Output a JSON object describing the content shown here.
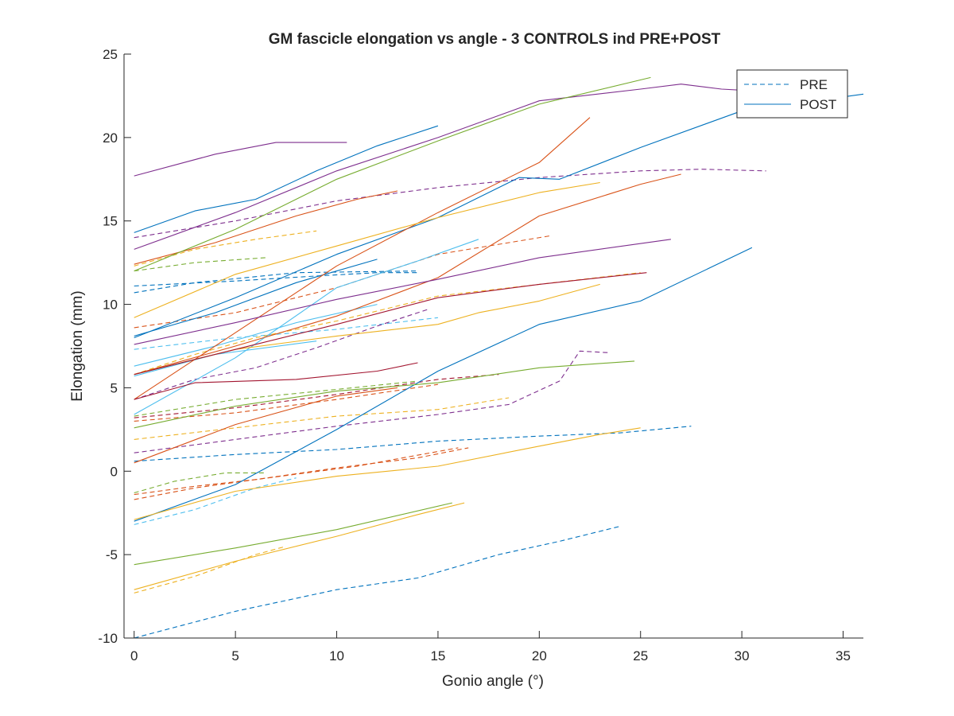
{
  "chart_data": {
    "type": "line",
    "title": "GM fascicle elongation vs angle - 3 CONTROLS ind PRE+POST",
    "xlabel": "Gonio angle (°)",
    "ylabel": "Elongation (mm)",
    "xlim": [
      -0.5,
      36
    ],
    "ylim": [
      -10,
      25
    ],
    "xticks": [
      0,
      5,
      10,
      15,
      20,
      25,
      30,
      35
    ],
    "yticks": [
      -10,
      -5,
      0,
      5,
      10,
      15,
      20,
      25
    ],
    "xtick_labels": [
      "0",
      "5",
      "10",
      "15",
      "20",
      "25",
      "30",
      "35"
    ],
    "ytick_labels": [
      "-10",
      "-5",
      "0",
      "5",
      "10",
      "15",
      "20",
      "25"
    ],
    "grid": false,
    "legend": {
      "position": "top-right",
      "entries": [
        {
          "label": "PRE",
          "style": "dashed",
          "color": "#0072BD"
        },
        {
          "label": "POST",
          "style": "solid",
          "color": "#0072BD"
        }
      ]
    },
    "colors": [
      "#0072BD",
      "#D95319",
      "#EDB120",
      "#7E2F8E",
      "#77AC30",
      "#4DBEEE",
      "#A2142F"
    ],
    "series": [
      {
        "group": "PRE",
        "color": "#0072BD",
        "points": [
          [
            0,
            -10.0
          ],
          [
            5,
            -8.4
          ],
          [
            10,
            -7.1
          ],
          [
            14,
            -6.4
          ],
          [
            18,
            -5.0
          ],
          [
            21,
            -4.2
          ],
          [
            24,
            -3.3
          ]
        ]
      },
      {
        "group": "PRE",
        "color": "#0072BD",
        "points": [
          [
            0,
            0.6
          ],
          [
            5,
            1.0
          ],
          [
            10,
            1.3
          ],
          [
            15,
            1.8
          ],
          [
            20,
            2.1
          ],
          [
            24,
            2.3
          ],
          [
            27.5,
            2.7
          ]
        ]
      },
      {
        "group": "PRE",
        "color": "#0072BD",
        "points": [
          [
            0,
            10.7
          ],
          [
            3,
            11.3
          ],
          [
            8,
            11.9
          ],
          [
            14,
            12.0
          ]
        ]
      },
      {
        "group": "PRE",
        "color": "#0072BD",
        "points": [
          [
            0,
            11.1
          ],
          [
            5,
            11.4
          ],
          [
            9,
            11.7
          ],
          [
            12,
            11.9
          ],
          [
            14,
            11.9
          ]
        ]
      },
      {
        "group": "PRE",
        "color": "#4DBEEE",
        "points": [
          [
            0,
            -3.2
          ],
          [
            3,
            -2.3
          ],
          [
            6,
            -1.0
          ],
          [
            8,
            -0.4
          ]
        ]
      },
      {
        "group": "PRE",
        "color": "#4DBEEE",
        "points": [
          [
            0,
            7.3
          ],
          [
            5,
            8.0
          ],
          [
            10,
            8.5
          ],
          [
            15,
            9.2
          ]
        ]
      },
      {
        "group": "PRE",
        "color": "#D95319",
        "points": [
          [
            0,
            -1.7
          ],
          [
            3,
            -1.0
          ],
          [
            6,
            -0.5
          ],
          [
            11,
            0.3
          ],
          [
            16,
            1.4
          ]
        ]
      },
      {
        "group": "PRE",
        "color": "#D95319",
        "points": [
          [
            0,
            8.6
          ],
          [
            5,
            9.5
          ],
          [
            10,
            11.0
          ],
          [
            15,
            13.0
          ],
          [
            20.5,
            14.1
          ]
        ]
      },
      {
        "group": "PRE",
        "color": "#D95319",
        "points": [
          [
            0,
            3.0
          ],
          [
            5,
            3.5
          ],
          [
            10,
            4.3
          ],
          [
            15,
            5.2
          ]
        ]
      },
      {
        "group": "PRE",
        "color": "#D95319",
        "points": [
          [
            0,
            -1.4
          ],
          [
            3,
            -0.9
          ],
          [
            6,
            -0.5
          ],
          [
            10,
            0.2
          ],
          [
            14,
            0.8
          ],
          [
            16.5,
            1.4
          ]
        ]
      },
      {
        "group": "PRE",
        "color": "#EDB120",
        "points": [
          [
            0,
            1.9
          ],
          [
            5,
            2.6
          ],
          [
            10,
            3.3
          ],
          [
            15,
            3.7
          ],
          [
            18.5,
            4.4
          ]
        ]
      },
      {
        "group": "PRE",
        "color": "#EDB120",
        "points": [
          [
            0,
            12.3
          ],
          [
            3,
            13.3
          ],
          [
            6,
            13.9
          ],
          [
            9,
            14.4
          ]
        ]
      },
      {
        "group": "PRE",
        "color": "#EDB120",
        "points": [
          [
            0,
            5.8
          ],
          [
            3,
            7.0
          ],
          [
            6,
            8.0
          ],
          [
            10,
            9.0
          ],
          [
            15,
            10.5
          ],
          [
            20,
            11.2
          ],
          [
            25,
            11.9
          ]
        ]
      },
      {
        "group": "PRE",
        "color": "#EDB120",
        "points": [
          [
            0,
            -7.3
          ],
          [
            3,
            -6.3
          ],
          [
            6,
            -5.0
          ],
          [
            7.5,
            -4.5
          ]
        ]
      },
      {
        "group": "PRE",
        "color": "#7E2F8E",
        "points": [
          [
            0,
            14.0
          ],
          [
            5,
            15.0
          ],
          [
            10,
            16.2
          ],
          [
            15,
            17.0
          ],
          [
            20,
            17.6
          ],
          [
            25,
            18.0
          ],
          [
            28,
            18.1
          ],
          [
            31.2,
            18.0
          ]
        ]
      },
      {
        "group": "PRE",
        "color": "#7E2F8E",
        "points": [
          [
            0,
            1.1
          ],
          [
            5,
            1.9
          ],
          [
            10,
            2.7
          ],
          [
            15,
            3.4
          ],
          [
            18.5,
            4.0
          ],
          [
            21,
            5.4
          ],
          [
            22,
            7.2
          ],
          [
            23.5,
            7.1
          ]
        ]
      },
      {
        "group": "PRE",
        "color": "#7E2F8E",
        "points": [
          [
            0,
            4.3
          ],
          [
            3,
            5.5
          ],
          [
            6,
            6.2
          ],
          [
            9,
            7.4
          ],
          [
            12,
            8.7
          ],
          [
            14.5,
            9.7
          ]
        ]
      },
      {
        "group": "PRE",
        "color": "#77AC30",
        "points": [
          [
            0,
            12.0
          ],
          [
            3,
            12.5
          ],
          [
            6.5,
            12.8
          ]
        ]
      },
      {
        "group": "PRE",
        "color": "#77AC30",
        "points": [
          [
            0,
            3.3
          ],
          [
            5,
            4.3
          ],
          [
            10,
            4.9
          ],
          [
            14,
            5.4
          ]
        ]
      },
      {
        "group": "PRE",
        "color": "#77AC30",
        "points": [
          [
            0,
            -1.3
          ],
          [
            2,
            -0.6
          ],
          [
            4.5,
            -0.1
          ],
          [
            6.5,
            -0.1
          ]
        ]
      },
      {
        "group": "PRE",
        "color": "#A2142F",
        "points": [
          [
            0,
            3.2
          ],
          [
            5,
            3.8
          ],
          [
            10,
            4.6
          ],
          [
            15,
            5.5
          ],
          [
            18,
            5.8
          ]
        ]
      },
      {
        "group": "POST",
        "color": "#0072BD",
        "points": [
          [
            0,
            14.3
          ],
          [
            3,
            15.6
          ],
          [
            6,
            16.3
          ],
          [
            9,
            18.0
          ],
          [
            12,
            19.5
          ],
          [
            15,
            20.7
          ]
        ]
      },
      {
        "group": "POST",
        "color": "#0072BD",
        "points": [
          [
            0,
            8.1
          ],
          [
            4,
            9.5
          ],
          [
            8,
            11.3
          ],
          [
            12,
            12.7
          ]
        ]
      },
      {
        "group": "POST",
        "color": "#0072BD",
        "points": [
          [
            0,
            8.0
          ],
          [
            5,
            10.4
          ],
          [
            10,
            13.0
          ],
          [
            15,
            15.2
          ],
          [
            19,
            17.6
          ],
          [
            21,
            17.5
          ],
          [
            25,
            19.4
          ],
          [
            30,
            21.6
          ],
          [
            36,
            22.6
          ]
        ]
      },
      {
        "group": "POST",
        "color": "#0072BD",
        "points": [
          [
            0,
            -3.0
          ],
          [
            5,
            -0.8
          ],
          [
            10,
            2.5
          ],
          [
            15,
            6.0
          ],
          [
            20,
            8.8
          ],
          [
            25,
            10.2
          ],
          [
            30.5,
            13.4
          ]
        ]
      },
      {
        "group": "POST",
        "color": "#4DBEEE",
        "points": [
          [
            0,
            6.3
          ],
          [
            4,
            7.5
          ],
          [
            8,
            8.9
          ],
          [
            12,
            10.0
          ]
        ]
      },
      {
        "group": "POST",
        "color": "#4DBEEE",
        "points": [
          [
            0,
            3.4
          ],
          [
            5,
            6.8
          ],
          [
            10,
            11.0
          ],
          [
            14,
            12.6
          ],
          [
            17,
            13.9
          ]
        ]
      },
      {
        "group": "POST",
        "color": "#4DBEEE",
        "points": [
          [
            0,
            5.7
          ],
          [
            4,
            7.0
          ],
          [
            9,
            7.8
          ]
        ]
      },
      {
        "group": "POST",
        "color": "#D95319",
        "points": [
          [
            0,
            12.4
          ],
          [
            4,
            13.7
          ],
          [
            8,
            15.3
          ],
          [
            11,
            16.3
          ],
          [
            13,
            16.8
          ]
        ]
      },
      {
        "group": "POST",
        "color": "#D95319",
        "points": [
          [
            0,
            4.3
          ],
          [
            5,
            8.3
          ],
          [
            10,
            12.3
          ],
          [
            15,
            15.5
          ],
          [
            20,
            18.5
          ],
          [
            22.5,
            21.2
          ]
        ]
      },
      {
        "group": "POST",
        "color": "#D95319",
        "points": [
          [
            0,
            0.5
          ],
          [
            5,
            2.8
          ],
          [
            10,
            4.5
          ],
          [
            13,
            5.0
          ]
        ]
      },
      {
        "group": "POST",
        "color": "#D95319",
        "points": [
          [
            0,
            5.8
          ],
          [
            5,
            7.5
          ],
          [
            10,
            9.3
          ],
          [
            15,
            11.6
          ],
          [
            20,
            15.3
          ],
          [
            25,
            17.2
          ],
          [
            27,
            17.8
          ]
        ]
      },
      {
        "group": "POST",
        "color": "#EDB120",
        "points": [
          [
            0,
            9.2
          ],
          [
            5,
            11.8
          ],
          [
            10,
            13.5
          ],
          [
            15,
            15.2
          ],
          [
            20,
            16.7
          ],
          [
            23,
            17.3
          ]
        ]
      },
      {
        "group": "POST",
        "color": "#EDB120",
        "points": [
          [
            0,
            -2.9
          ],
          [
            5,
            -1.2
          ],
          [
            10,
            -0.3
          ],
          [
            15,
            0.3
          ],
          [
            20,
            1.5
          ],
          [
            23,
            2.2
          ],
          [
            25,
            2.6
          ]
        ]
      },
      {
        "group": "POST",
        "color": "#EDB120",
        "points": [
          [
            0,
            5.8
          ],
          [
            5,
            7.3
          ],
          [
            10,
            8.1
          ],
          [
            15,
            8.8
          ],
          [
            17,
            9.5
          ],
          [
            20,
            10.2
          ],
          [
            23,
            11.2
          ]
        ]
      },
      {
        "group": "POST",
        "color": "#EDB120",
        "points": [
          [
            0,
            -7.1
          ],
          [
            5,
            -5.4
          ],
          [
            10,
            -3.9
          ],
          [
            14,
            -2.6
          ],
          [
            16.3,
            -1.9
          ]
        ]
      },
      {
        "group": "POST",
        "color": "#7E2F8E",
        "points": [
          [
            0,
            17.7
          ],
          [
            4,
            19.0
          ],
          [
            7,
            19.7
          ],
          [
            10.5,
            19.7
          ]
        ]
      },
      {
        "group": "POST",
        "color": "#7E2F8E",
        "points": [
          [
            0,
            13.3
          ],
          [
            5,
            15.5
          ],
          [
            10,
            18.0
          ],
          [
            15,
            20.0
          ],
          [
            20,
            22.2
          ],
          [
            25,
            22.9
          ],
          [
            27,
            23.2
          ],
          [
            29,
            22.9
          ],
          [
            30.5,
            22.8
          ]
        ]
      },
      {
        "group": "POST",
        "color": "#7E2F8E",
        "points": [
          [
            0,
            7.6
          ],
          [
            5,
            8.9
          ],
          [
            10,
            10.3
          ],
          [
            15,
            11.5
          ],
          [
            20,
            12.8
          ],
          [
            26.5,
            13.9
          ]
        ]
      },
      {
        "group": "POST",
        "color": "#77AC30",
        "points": [
          [
            0,
            12.0
          ],
          [
            5,
            14.5
          ],
          [
            10,
            17.5
          ],
          [
            15,
            19.8
          ],
          [
            20,
            22.0
          ],
          [
            25.5,
            23.6
          ]
        ]
      },
      {
        "group": "POST",
        "color": "#77AC30",
        "points": [
          [
            0,
            2.6
          ],
          [
            5,
            3.9
          ],
          [
            10,
            4.8
          ],
          [
            15,
            5.3
          ],
          [
            20,
            6.2
          ],
          [
            24.7,
            6.6
          ]
        ]
      },
      {
        "group": "POST",
        "color": "#77AC30",
        "points": [
          [
            0,
            -5.6
          ],
          [
            5,
            -4.6
          ],
          [
            10,
            -3.5
          ],
          [
            15.7,
            -1.9
          ]
        ]
      },
      {
        "group": "POST",
        "color": "#A2142F",
        "points": [
          [
            0,
            4.3
          ],
          [
            3,
            5.3
          ],
          [
            8,
            5.5
          ],
          [
            12,
            6.0
          ],
          [
            14,
            6.5
          ]
        ]
      },
      {
        "group": "POST",
        "color": "#A2142F",
        "points": [
          [
            0,
            5.8
          ],
          [
            5,
            7.3
          ],
          [
            10,
            8.8
          ],
          [
            15,
            10.4
          ],
          [
            20,
            11.2
          ],
          [
            25.3,
            11.9
          ]
        ]
      }
    ]
  }
}
